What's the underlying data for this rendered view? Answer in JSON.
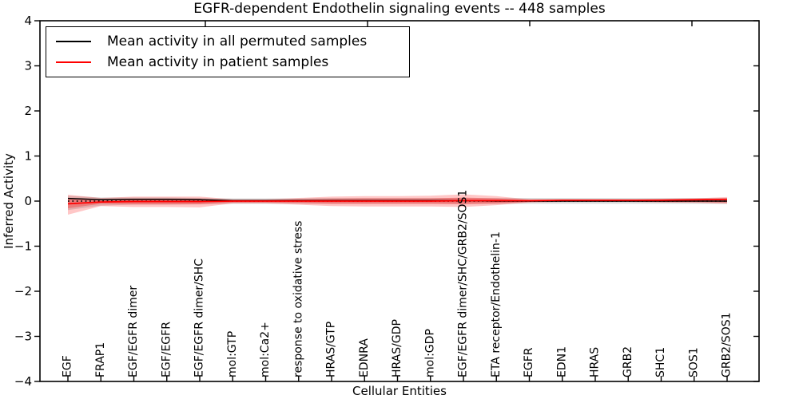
{
  "title": "EGFR-dependent Endothelin signaling events -- 448 samples",
  "axes": {
    "x_label": "Cellular Entities",
    "y_label": "Inferred Activity",
    "y_tick_labels": [
      "4",
      "3",
      "2",
      "1",
      "0",
      "−1",
      "−2",
      "−3",
      "−4"
    ],
    "y_tick_values": [
      4,
      3,
      2,
      1,
      0,
      -1,
      -2,
      -3,
      -4
    ]
  },
  "legend": {
    "items": [
      {
        "label": "Mean activity in all permuted samples",
        "color": "#000000"
      },
      {
        "label": "Mean activity in patient samples",
        "color": "#ff0000"
      }
    ]
  },
  "colors": {
    "frame": "#000000",
    "permuted_line": "#000000",
    "patient_line": "#ff0000",
    "permuted_band": "#dcdcdc",
    "patient_band": "#ff0000",
    "background": "#ffffff"
  },
  "chart_data": {
    "type": "line",
    "title": "EGFR-dependent Endothelin signaling events -- 448 samples",
    "xlabel": "Cellular Entities",
    "ylabel": "Inferred Activity",
    "ylim": [
      -4,
      4
    ],
    "grid": false,
    "legend_position": "upper left",
    "categories": [
      "EGF",
      "FRAP1",
      "EGF/EGFR dimer",
      "EGF/EGFR",
      "EGF/EGFR dimer/SHC",
      "mol:GTP",
      "mol:Ca2+",
      "response to oxidative stress",
      "HRAS/GTP",
      "EDNRA",
      "HRAS/GDP",
      "mol:GDP",
      "EGF/EGFR dimer/SHC/GRB2/SOS1",
      "ETA receptor/Endothelin-1",
      "EGFR",
      "EDN1",
      "HRAS",
      "GRB2",
      "SHC1",
      "SOS1",
      "GRB2/SOS1"
    ],
    "reference_line": {
      "y": 0,
      "style": "dotted",
      "color": "#000000"
    },
    "series": [
      {
        "name": "Mean activity in all permuted samples",
        "color": "#000000",
        "line_style": "solid",
        "values": [
          0.06,
          0.03,
          0.04,
          0.04,
          0.03,
          0.01,
          0.01,
          0.01,
          0.01,
          0.01,
          0.01,
          0.01,
          0.01,
          0.0,
          0.0,
          0.0,
          0.0,
          0.0,
          0.0,
          0.0,
          0.0
        ],
        "band_upper": [
          0.12,
          0.08,
          0.08,
          0.08,
          0.07,
          0.06,
          0.06,
          0.06,
          0.07,
          0.07,
          0.07,
          0.07,
          0.07,
          0.07,
          0.07,
          0.07,
          0.07,
          0.07,
          0.07,
          0.07,
          0.07
        ],
        "band_lower": [
          -0.2,
          -0.1,
          -0.08,
          -0.08,
          -0.07,
          -0.06,
          -0.06,
          -0.06,
          -0.06,
          -0.06,
          -0.06,
          -0.06,
          -0.06,
          -0.06,
          -0.06,
          -0.06,
          -0.06,
          -0.06,
          -0.06,
          -0.06,
          -0.06
        ]
      },
      {
        "name": "Mean activity in patient samples",
        "color": "#ff0000",
        "line_style": "solid",
        "values": [
          -0.06,
          -0.02,
          -0.01,
          -0.01,
          -0.01,
          0.0,
          0.0,
          0.0,
          0.0,
          0.0,
          0.0,
          0.0,
          0.01,
          0.01,
          0.01,
          0.02,
          0.02,
          0.02,
          0.02,
          0.03,
          0.04
        ],
        "band_upper": [
          0.14,
          0.07,
          0.1,
          0.1,
          0.1,
          0.04,
          0.04,
          0.07,
          0.1,
          0.11,
          0.11,
          0.12,
          0.15,
          0.11,
          0.04,
          0.03,
          0.03,
          0.03,
          0.05,
          0.06,
          0.09
        ],
        "band_lower": [
          -0.3,
          -0.11,
          -0.13,
          -0.13,
          -0.14,
          -0.05,
          -0.05,
          -0.08,
          -0.11,
          -0.12,
          -0.12,
          -0.12,
          -0.13,
          -0.09,
          -0.03,
          -0.02,
          -0.02,
          -0.02,
          -0.03,
          -0.04,
          -0.06
        ],
        "band_inner_upper": [
          0.07,
          0.04,
          0.05,
          0.05,
          0.05,
          0.02,
          0.02,
          0.04,
          0.05,
          0.06,
          0.06,
          0.06,
          0.08,
          0.06,
          0.02,
          0.02,
          0.02,
          0.02,
          0.03,
          0.03,
          0.05
        ],
        "band_inner_lower": [
          -0.16,
          -0.06,
          -0.07,
          -0.07,
          -0.07,
          -0.03,
          -0.03,
          -0.04,
          -0.06,
          -0.06,
          -0.06,
          -0.06,
          -0.07,
          -0.05,
          -0.02,
          -0.01,
          -0.01,
          -0.01,
          -0.02,
          -0.02,
          -0.03
        ]
      }
    ]
  }
}
